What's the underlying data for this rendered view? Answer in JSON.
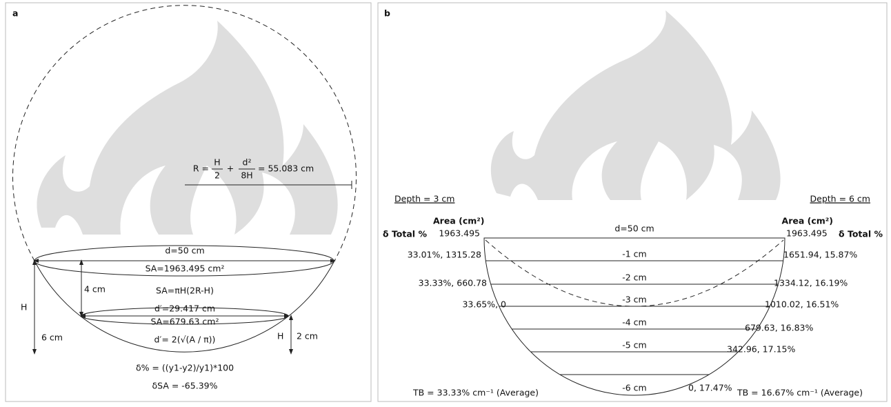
{
  "panel_a": {
    "label": "a",
    "formula": {
      "lhs": "R =",
      "frac1_num": "H",
      "frac1_den": "2",
      "plus": "+",
      "frac2_num": "d²",
      "frac2_den": "8H",
      "result": "= 55.083 cm"
    },
    "labels": {
      "d": "d=50 cm",
      "sa_top": "SA=1963.495 cm²",
      "sa_formula": "SA=πH(2R-H)",
      "h4": "4 cm",
      "h_left": "H",
      "h6": "6 cm",
      "d_prime": "d′=29.417 cm",
      "sa_bottom": "SA=679.63 cm²",
      "d_prime_formula": "d′= 2(√(A / π))",
      "h_right": "H",
      "h2": "2 cm",
      "delta_formula": "δ% = ((y1-y2)/y1)*100",
      "delta_sa": "δSA = -65.39%"
    }
  },
  "panel_b": {
    "label": "b",
    "left_header": "Depth = 3 cm",
    "right_header": "Depth = 6 cm",
    "left_area_header": "Area (cm²)",
    "right_area_header": "Area (cm²)",
    "left_delta_header": "δ Total %",
    "right_delta_header": "δ Total %",
    "left_top_area": "1963.495",
    "right_top_area": "1963.495",
    "diameter": "d=50 cm",
    "levels": [
      "-1 cm",
      "-2 cm",
      "-3 cm",
      "-4 cm",
      "-5 cm",
      "-6 cm"
    ],
    "left_values": [
      "33.01%, 1315.28",
      "33.33%, 660.78",
      "33.65%, 0"
    ],
    "right_values": [
      "1651.94, 15.87%",
      "1334.12, 16.19%",
      "1010.02, 16.51%",
      "679.63, 16.83%",
      "342.96, 17.15%",
      "0, 17.47%"
    ],
    "left_footer": "TB = 33.33% cm⁻¹ (Average)",
    "right_footer": "TB = 16.67% cm⁻¹ (Average)"
  }
}
